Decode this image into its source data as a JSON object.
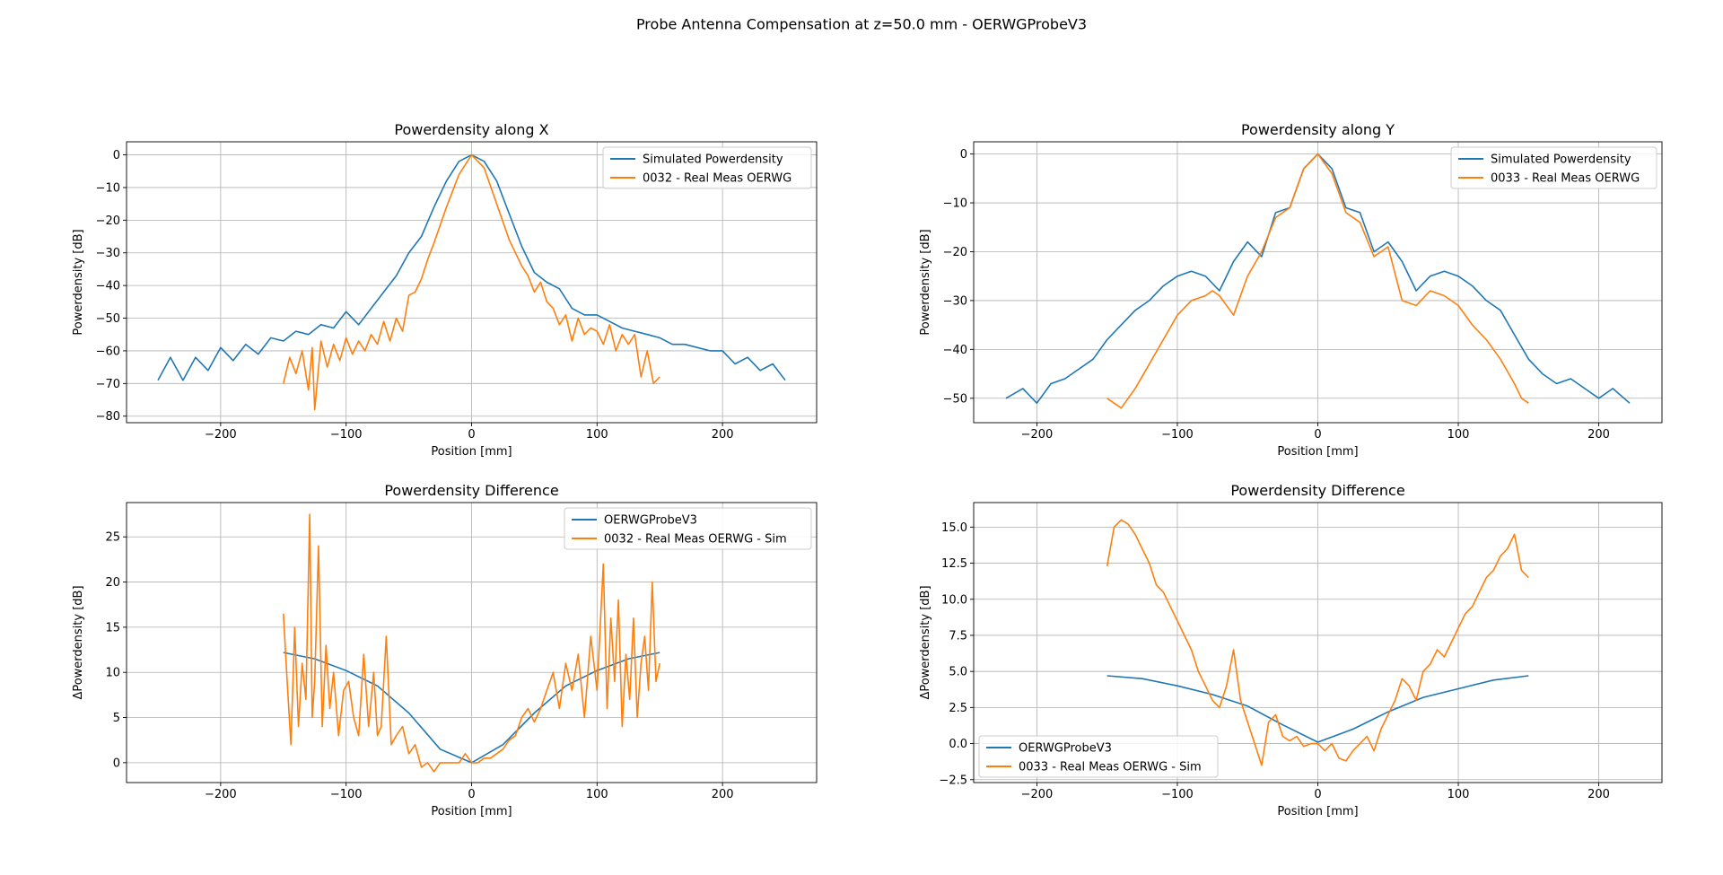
{
  "figure": {
    "title": "Probe Antenna Compensation at z=50.0 mm - OERWGProbeV3"
  },
  "chart_data": [
    {
      "type": "line",
      "title": "Powerdensity along X",
      "xlabel": "Position [mm]",
      "ylabel": "Powerdensity [dB]",
      "xlim": [
        -275,
        275
      ],
      "ylim": [
        -82,
        4
      ],
      "xticks": [
        -200,
        -100,
        0,
        100,
        200
      ],
      "yticks": [
        -80,
        -70,
        -60,
        -50,
        -40,
        -30,
        -20,
        -10,
        0
      ],
      "grid": true,
      "legend_position": "top-right",
      "series": [
        {
          "name": "Simulated Powerdensity",
          "color": "#1f77b4",
          "x": [
            -250,
            -240,
            -230,
            -220,
            -210,
            -200,
            -190,
            -180,
            -170,
            -160,
            -150,
            -140,
            -130,
            -120,
            -110,
            -100,
            -90,
            -80,
            -70,
            -60,
            -50,
            -40,
            -30,
            -20,
            -10,
            0,
            10,
            20,
            30,
            40,
            50,
            60,
            70,
            80,
            90,
            100,
            110,
            120,
            130,
            140,
            150,
            160,
            170,
            180,
            190,
            200,
            210,
            220,
            230,
            240,
            250
          ],
          "y": [
            -69,
            -62,
            -69,
            -62,
            -66,
            -59,
            -63,
            -58,
            -61,
            -56,
            -57,
            -54,
            -55,
            -52,
            -53,
            -48,
            -52,
            -47,
            -42,
            -37,
            -30,
            -25,
            -16,
            -8,
            -2,
            0,
            -2,
            -8,
            -18,
            -28,
            -36,
            -39,
            -41,
            -47,
            -49,
            -49,
            -51,
            -53,
            -54,
            -55,
            -56,
            -58,
            -58,
            -59,
            -60,
            -60,
            -64,
            -62,
            -66,
            -64,
            -69
          ]
        },
        {
          "name": "0032 - Real Meas OERWG",
          "color": "#ff7f0e",
          "x": [
            -150,
            -145,
            -140,
            -135,
            -130,
            -127,
            -125,
            -120,
            -115,
            -110,
            -105,
            -100,
            -95,
            -90,
            -85,
            -80,
            -75,
            -70,
            -65,
            -60,
            -55,
            -50,
            -45,
            -40,
            -35,
            -30,
            -20,
            -10,
            0,
            10,
            20,
            30,
            40,
            45,
            50,
            55,
            60,
            65,
            70,
            75,
            80,
            85,
            90,
            95,
            100,
            105,
            110,
            115,
            120,
            125,
            130,
            135,
            140,
            145,
            150
          ],
          "y": [
            -70,
            -62,
            -67,
            -60,
            -72,
            -59,
            -78,
            -57,
            -65,
            -58,
            -63,
            -56,
            -61,
            -57,
            -60,
            -55,
            -58,
            -51,
            -57,
            -50,
            -54,
            -43,
            -42,
            -38,
            -32,
            -27,
            -16,
            -6,
            0,
            -4,
            -15,
            -26,
            -34,
            -37,
            -42,
            -39,
            -45,
            -47,
            -52,
            -49,
            -57,
            -50,
            -55,
            -53,
            -54,
            -58,
            -52,
            -60,
            -55,
            -58,
            -55,
            -68,
            -60,
            -70,
            -68
          ]
        }
      ]
    },
    {
      "type": "line",
      "title": "Powerdensity along Y",
      "xlabel": "Position [mm]",
      "ylabel": "Powerdensity [dB]",
      "xlim": [
        -245,
        245
      ],
      "ylim": [
        -55,
        2.5
      ],
      "xticks": [
        -200,
        -100,
        0,
        100,
        200
      ],
      "yticks": [
        -50,
        -40,
        -30,
        -20,
        -10,
        0
      ],
      "grid": true,
      "legend_position": "top-right",
      "series": [
        {
          "name": "Simulated Powerdensity",
          "color": "#1f77b4",
          "x": [
            -222,
            -210,
            -200,
            -190,
            -180,
            -170,
            -160,
            -150,
            -140,
            -130,
            -120,
            -110,
            -100,
            -90,
            -80,
            -70,
            -60,
            -50,
            -40,
            -30,
            -20,
            -10,
            0,
            10,
            20,
            30,
            40,
            50,
            60,
            70,
            80,
            90,
            100,
            110,
            120,
            130,
            140,
            150,
            160,
            170,
            180,
            190,
            200,
            210,
            222
          ],
          "y": [
            -50,
            -48,
            -51,
            -47,
            -46,
            -44,
            -42,
            -38,
            -35,
            -32,
            -30,
            -27,
            -25,
            -24,
            -25,
            -28,
            -22,
            -18,
            -21,
            -12,
            -11,
            -3,
            0,
            -3,
            -11,
            -12,
            -20,
            -18,
            -22,
            -28,
            -25,
            -24,
            -25,
            -27,
            -30,
            -32,
            -37,
            -42,
            -45,
            -47,
            -46,
            -48,
            -50,
            -48,
            -51
          ]
        },
        {
          "name": "0033 - Real Meas OERWG",
          "color": "#ff7f0e",
          "x": [
            -150,
            -140,
            -130,
            -120,
            -110,
            -100,
            -90,
            -80,
            -75,
            -70,
            -60,
            -50,
            -40,
            -30,
            -20,
            -10,
            0,
            10,
            20,
            30,
            40,
            50,
            60,
            70,
            80,
            90,
            100,
            110,
            120,
            130,
            140,
            145,
            150
          ],
          "y": [
            -50,
            -52,
            -48,
            -43,
            -38,
            -33,
            -30,
            -29,
            -28,
            -29,
            -33,
            -25,
            -20,
            -13,
            -11,
            -3,
            0,
            -4,
            -12,
            -14,
            -21,
            -19,
            -30,
            -31,
            -28,
            -29,
            -31,
            -35,
            -38,
            -42,
            -47,
            -50,
            -51
          ]
        }
      ]
    },
    {
      "type": "line",
      "title": "Powerdensity Difference",
      "xlabel": "Position [mm]",
      "ylabel": "ΔPowerdensity [dB]",
      "xlim": [
        -275,
        275
      ],
      "ylim": [
        -2.2,
        28.8
      ],
      "xticks": [
        -200,
        -100,
        0,
        100,
        200
      ],
      "yticks": [
        0,
        5,
        10,
        15,
        20,
        25
      ],
      "grid": true,
      "legend_position": "top-right",
      "series": [
        {
          "name": "OERWGProbeV3",
          "color": "#1f77b4",
          "x": [
            -150,
            -125,
            -100,
            -75,
            -50,
            -25,
            0,
            25,
            50,
            75,
            100,
            125,
            150
          ],
          "y": [
            12.2,
            11.5,
            10.2,
            8.5,
            5.5,
            1.5,
            0,
            2,
            5.5,
            8.5,
            10.2,
            11.5,
            12.2
          ]
        },
        {
          "name": "0032 - Real Meas OERWG - Sim",
          "color": "#ff7f0e",
          "x": [
            -150,
            -147,
            -144,
            -141,
            -138,
            -135,
            -132,
            -129,
            -127,
            -125,
            -122,
            -119,
            -116,
            -113,
            -110,
            -106,
            -102,
            -98,
            -94,
            -90,
            -86,
            -82,
            -78,
            -75,
            -72,
            -68,
            -64,
            -60,
            -55,
            -50,
            -45,
            -40,
            -35,
            -30,
            -25,
            -20,
            -15,
            -10,
            -5,
            0,
            5,
            10,
            15,
            20,
            25,
            30,
            35,
            40,
            45,
            50,
            55,
            60,
            65,
            70,
            75,
            80,
            85,
            90,
            95,
            100,
            105,
            108,
            111,
            114,
            117,
            120,
            123,
            126,
            129,
            132,
            135,
            138,
            141,
            144,
            147,
            150
          ],
          "y": [
            16.5,
            9,
            2,
            15,
            4,
            11,
            7,
            27.5,
            5,
            9,
            24,
            4,
            13,
            6,
            10,
            3,
            8,
            9,
            5,
            3,
            12,
            4,
            10,
            3,
            4,
            14,
            2,
            3,
            4,
            1,
            2,
            -0.5,
            0,
            -1,
            0,
            0,
            0,
            0,
            1,
            0,
            0,
            0.5,
            0.5,
            1,
            1.5,
            2.5,
            3,
            5,
            6,
            4.5,
            6,
            8,
            10,
            6,
            11,
            8,
            12,
            5,
            14,
            8,
            22,
            6,
            16,
            9,
            18,
            4,
            12,
            7,
            16,
            5,
            11,
            14,
            8,
            20,
            9,
            11
          ]
        }
      ]
    },
    {
      "type": "line",
      "title": "Powerdensity Difference",
      "xlabel": "Position [mm]",
      "ylabel": "ΔPowerdensity [dB]",
      "xlim": [
        -245,
        245
      ],
      "ylim": [
        -2.7,
        16.7
      ],
      "xticks": [
        -200,
        -100,
        0,
        100,
        200
      ],
      "yticks": [
        -2.5,
        0.0,
        2.5,
        5.0,
        7.5,
        10.0,
        12.5,
        15.0
      ],
      "grid": true,
      "legend_position": "bottom-left",
      "series": [
        {
          "name": "OERWGProbeV3",
          "color": "#1f77b4",
          "x": [
            -150,
            -125,
            -100,
            -75,
            -50,
            -25,
            0,
            25,
            50,
            75,
            100,
            125,
            150
          ],
          "y": [
            4.7,
            4.5,
            4.0,
            3.4,
            2.6,
            1.3,
            0.1,
            1.0,
            2.2,
            3.2,
            3.8,
            4.4,
            4.7
          ]
        },
        {
          "name": "0033 - Real Meas OERWG - Sim",
          "color": "#ff7f0e",
          "x": [
            -150,
            -145,
            -140,
            -135,
            -130,
            -125,
            -120,
            -115,
            -110,
            -105,
            -100,
            -95,
            -90,
            -85,
            -80,
            -75,
            -70,
            -65,
            -60,
            -55,
            -50,
            -45,
            -40,
            -35,
            -30,
            -25,
            -20,
            -15,
            -10,
            -5,
            0,
            5,
            10,
            15,
            20,
            25,
            30,
            35,
            40,
            45,
            50,
            55,
            60,
            65,
            70,
            75,
            80,
            85,
            90,
            95,
            100,
            105,
            110,
            115,
            120,
            125,
            130,
            135,
            140,
            145,
            150
          ],
          "y": [
            12.3,
            15,
            15.5,
            15.2,
            14.5,
            13.5,
            12.5,
            11,
            10.5,
            9.5,
            8.5,
            7.5,
            6.5,
            5,
            4,
            3,
            2.5,
            4,
            6.5,
            3,
            1.5,
            0,
            -1.5,
            1.5,
            2,
            0.5,
            0.2,
            0.5,
            -0.2,
            0,
            0,
            -0.5,
            0,
            -1,
            -1.2,
            -0.5,
            0,
            0.5,
            -0.5,
            1,
            2,
            3,
            4.5,
            4,
            3,
            5,
            5.5,
            6.5,
            6,
            7,
            8,
            9,
            9.5,
            10.5,
            11.5,
            12,
            13,
            13.5,
            14.5,
            12,
            11.5
          ]
        }
      ]
    }
  ]
}
